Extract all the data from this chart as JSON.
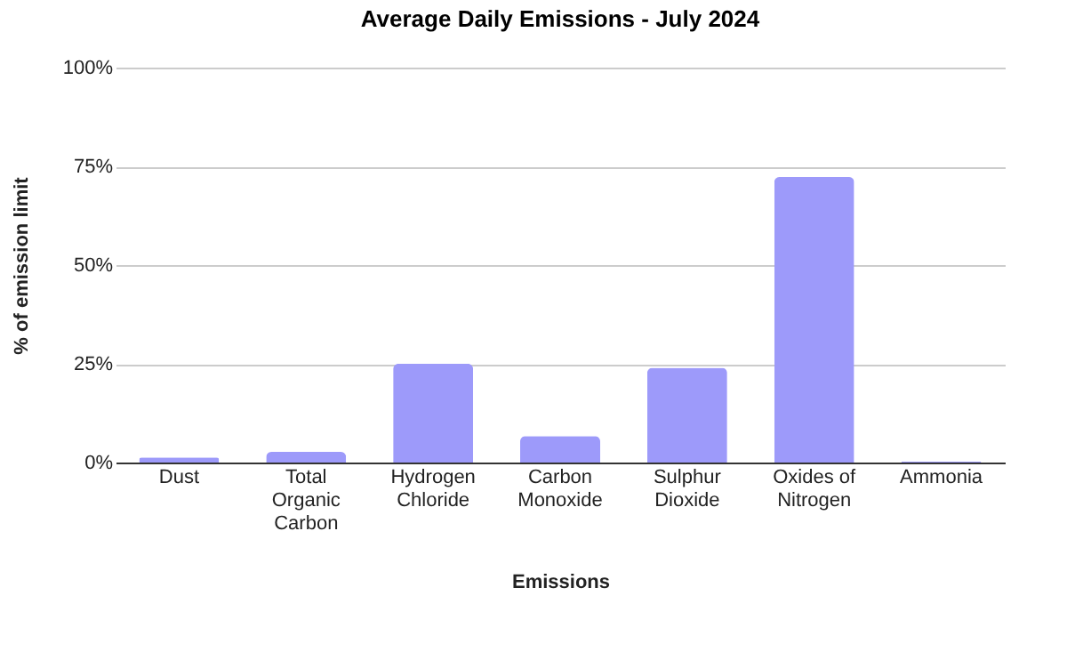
{
  "chart_data": {
    "type": "bar",
    "title": "Average Daily Emissions - July 2024",
    "xlabel": "Emissions",
    "ylabel": "% of emission limit",
    "categories": [
      "Dust",
      "Total Organic Carbon",
      "Hydrogen Chloride",
      "Carbon Monoxide",
      "Sulphur Dioxide",
      "Oxides of Nitrogen",
      "Ammonia"
    ],
    "values": [
      1.3,
      2.7,
      25,
      6.7,
      24,
      72.3,
      0.2
    ],
    "color": "#9d9afa",
    "ylim": [
      0,
      100
    ],
    "yticks": [
      {
        "value": 0,
        "label": "0%"
      },
      {
        "value": 25,
        "label": "25%"
      },
      {
        "value": 50,
        "label": "50%"
      },
      {
        "value": 75,
        "label": "75%"
      },
      {
        "value": 100,
        "label": "100%"
      }
    ],
    "grid": "y"
  }
}
